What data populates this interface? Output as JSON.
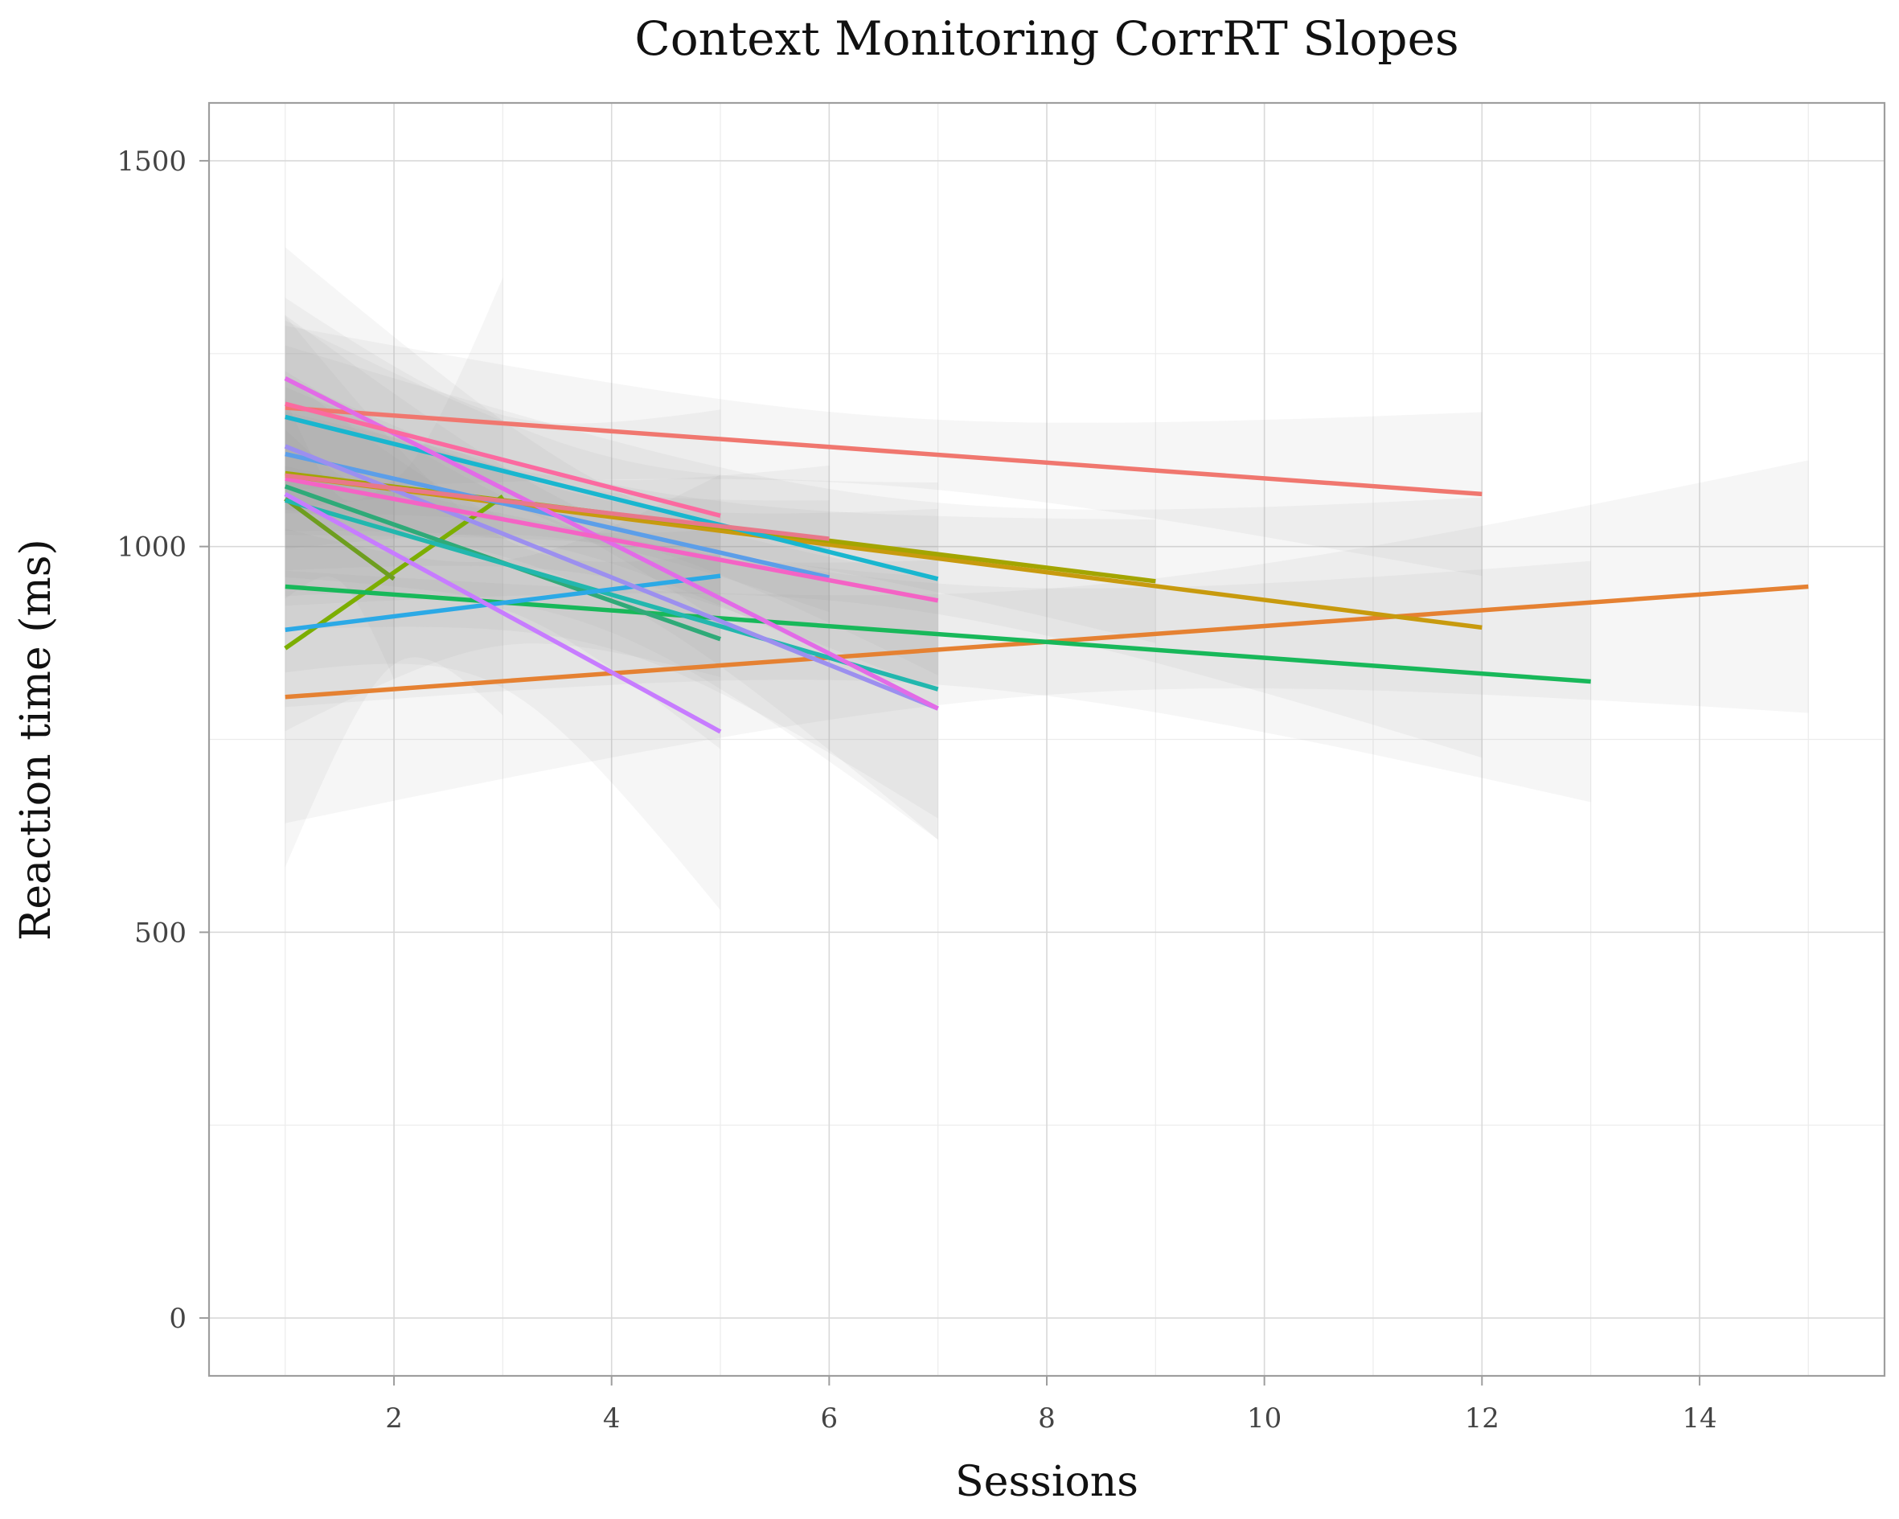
{
  "chart_data": {
    "type": "line",
    "title": "Context Monitoring CorrRT Slopes",
    "xlabel": "Sessions",
    "ylabel": "Reaction time (ms)",
    "xlim": [
      0.3,
      15.7
    ],
    "ylim": [
      -75,
      1575
    ],
    "x_ticks": [
      2,
      4,
      6,
      8,
      10,
      12,
      14
    ],
    "y_ticks": [
      0,
      500,
      1000,
      1500
    ],
    "grid": true,
    "legend": "none",
    "series": [
      {
        "color": "#F0776F",
        "x": [
          1,
          12
        ],
        "y": [
          1180,
          1068
        ],
        "band": [
          [
            1030,
            1330
          ],
          [
            1005,
            1130
          ]
        ]
      },
      {
        "color": "#E58132",
        "x": [
          1,
          15
        ],
        "y": [
          805,
          948
        ],
        "band": [
          [
            640,
            970
          ],
          [
            780,
            1105
          ]
        ]
      },
      {
        "color": "#C89A0E",
        "x": [
          1,
          12
        ],
        "y": [
          1092,
          895
        ],
        "band": [
          [
            960,
            1225
          ],
          [
            690,
            1100
          ]
        ]
      },
      {
        "color": "#A3A500",
        "x": [
          1,
          9
        ],
        "y": [
          1095,
          955
        ],
        "band": [
          [
            990,
            1200
          ],
          [
            900,
            1010
          ]
        ]
      },
      {
        "color": "#7CAE00",
        "x": [
          1,
          3
        ],
        "y": [
          868,
          1065
        ],
        "band": [
          [
            600,
            1140
          ],
          [
            875,
            1470
          ]
        ]
      },
      {
        "color": "#6E9E1F",
        "x": [
          1,
          2
        ],
        "y": [
          1062,
          958
        ],
        "band": [
          [
            900,
            1220
          ],
          [
            860,
            1060
          ]
        ]
      },
      {
        "color": "#18B85A",
        "x": [
          1,
          13
        ],
        "y": [
          948,
          825
        ],
        "band": [
          [
            860,
            1035
          ],
          [
            600,
            1050
          ]
        ]
      },
      {
        "color": "#2FAA78",
        "x": [
          1,
          5
        ],
        "y": [
          1078,
          880
        ],
        "band": [
          [
            950,
            1200
          ],
          [
            720,
            1040
          ]
        ]
      },
      {
        "color": "#22B7AE",
        "x": [
          1,
          7
        ],
        "y": [
          1060,
          815
        ],
        "band": [
          [
            900,
            1220
          ],
          [
            640,
            990
          ]
        ]
      },
      {
        "color": "#19B6CF",
        "x": [
          1,
          7
        ],
        "y": [
          1168,
          958
        ],
        "band": [
          [
            1050,
            1290
          ],
          [
            830,
            1090
          ]
        ]
      },
      {
        "color": "#2BA9E6",
        "x": [
          1,
          5
        ],
        "y": [
          892,
          962
        ],
        "band": [
          [
            740,
            1040
          ],
          [
            850,
            1075
          ]
        ]
      },
      {
        "color": "#5C9EE9",
        "x": [
          1,
          6
        ],
        "y": [
          1120,
          960
        ],
        "band": [
          [
            1000,
            1240
          ],
          [
            880,
            1040
          ]
        ]
      },
      {
        "color": "#9C8FEF",
        "x": [
          1,
          7
        ],
        "y": [
          1130,
          790
        ],
        "band": [
          [
            980,
            1280
          ],
          [
            600,
            980
          ]
        ]
      },
      {
        "color": "#C77CFF",
        "x": [
          1,
          5
        ],
        "y": [
          1068,
          760
        ],
        "band": [
          [
            820,
            1315
          ],
          [
            545,
            975
          ]
        ]
      },
      {
        "color": "#E26BE7",
        "x": [
          1,
          7
        ],
        "y": [
          1218,
          790
        ],
        "band": [
          [
            1060,
            1380
          ],
          [
            610,
            970
          ]
        ]
      },
      {
        "color": "#F463C5",
        "x": [
          1,
          7
        ],
        "y": [
          1088,
          930
        ],
        "band": [
          [
            960,
            1215
          ],
          [
            820,
            1040
          ]
        ]
      },
      {
        "color": "#FB6AA0",
        "x": [
          1,
          5
        ],
        "y": [
          1185,
          1040
        ],
        "band": [
          [
            1050,
            1320
          ],
          [
            900,
            1180
          ]
        ]
      },
      {
        "color": "#E8788A",
        "x": [
          1,
          6
        ],
        "y": [
          1092,
          1010
        ],
        "band": [
          [
            980,
            1200
          ],
          [
            930,
            1090
          ]
        ]
      }
    ]
  }
}
